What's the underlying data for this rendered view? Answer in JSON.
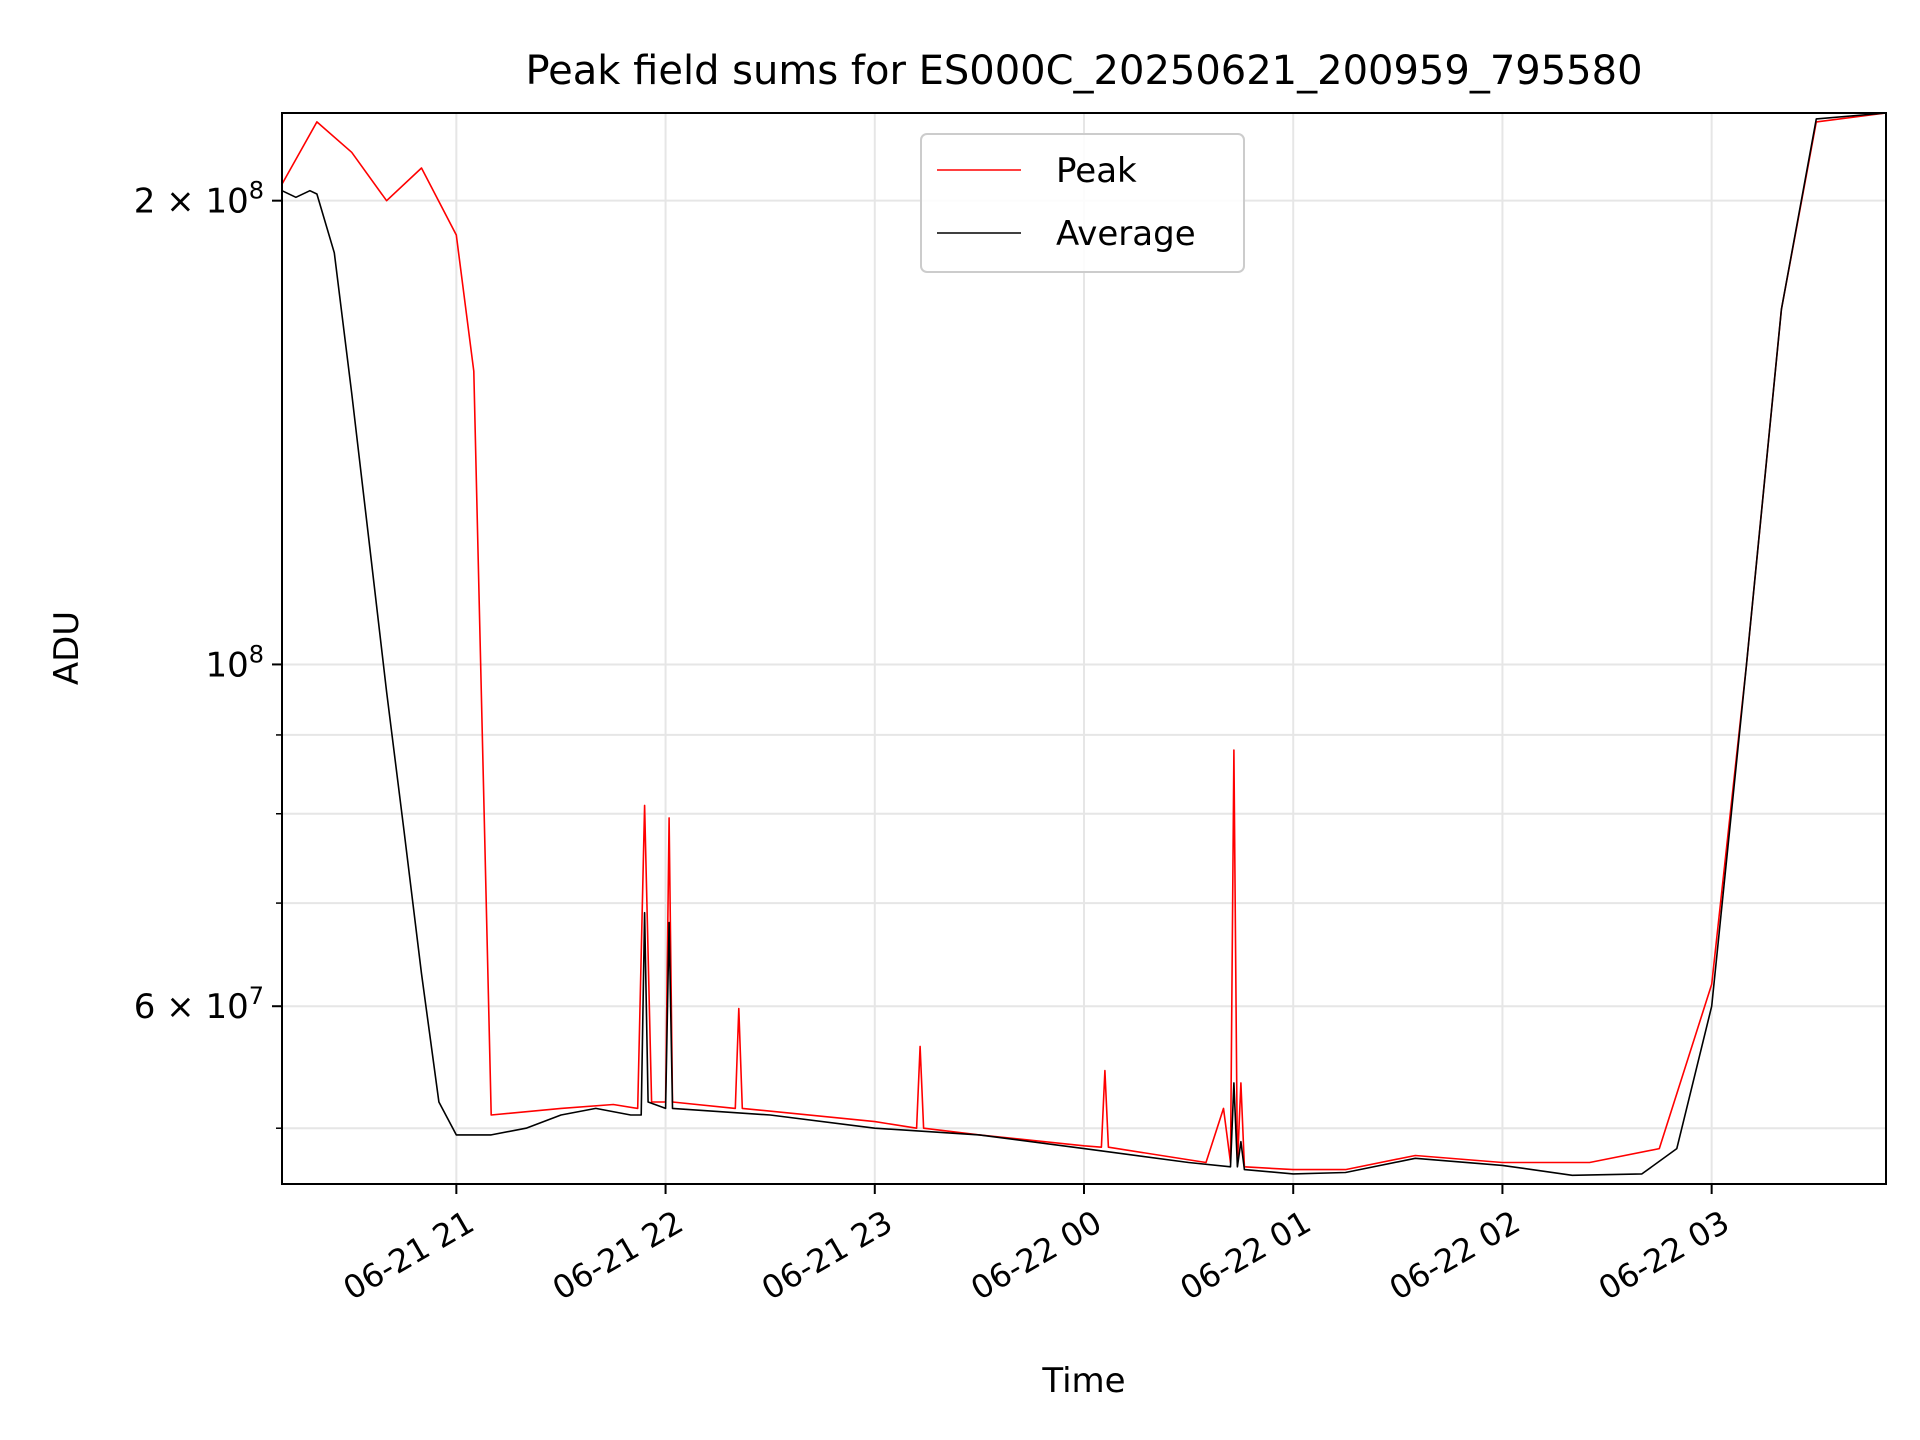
{
  "chart_data": {
    "type": "line",
    "title": "Peak field sums for ES000C_20250621_200959_795580",
    "xlabel": "Time",
    "ylabel": "ADU",
    "y_scale": "log",
    "grid": true,
    "legend_position": "top-center",
    "x_range": [
      "2025-06-21 20:10",
      "2025-06-22 03:50"
    ],
    "ylim": [
      46000000,
      228000000
    ],
    "x_ticks": [
      {
        "t": "2025-06-21 21:00",
        "label": "06-21 21"
      },
      {
        "t": "2025-06-21 22:00",
        "label": "06-21 22"
      },
      {
        "t": "2025-06-21 23:00",
        "label": "06-21 23"
      },
      {
        "t": "2025-06-22 00:00",
        "label": "06-22 00"
      },
      {
        "t": "2025-06-22 01:00",
        "label": "06-22 01"
      },
      {
        "t": "2025-06-22 02:00",
        "label": "06-22 02"
      },
      {
        "t": "2025-06-22 03:00",
        "label": "06-22 03"
      }
    ],
    "y_major_ticks": [
      {
        "value": 200000000,
        "mantissa": "2",
        "exp": "8"
      },
      {
        "value": 100000000,
        "mantissa": "",
        "exp": "8"
      },
      {
        "value": 60000000,
        "mantissa": "6",
        "exp": "7"
      }
    ],
    "y_minor_ticks": [
      50000000,
      70000000,
      80000000,
      90000000
    ],
    "series": [
      {
        "name": "Peak",
        "color": "#ff0000",
        "points": [
          [
            "2025-06-21 20:10",
            205000000
          ],
          [
            "2025-06-21 20:20",
            225000000
          ],
          [
            "2025-06-21 20:30",
            215000000
          ],
          [
            "2025-06-21 20:40",
            200000000
          ],
          [
            "2025-06-21 20:50",
            210000000
          ],
          [
            "2025-06-21 21:00",
            190000000
          ],
          [
            "2025-06-21 21:05",
            155000000
          ],
          [
            "2025-06-21 21:10",
            51000000
          ],
          [
            "2025-06-21 21:30",
            51500000
          ],
          [
            "2025-06-21 21:45",
            51800000
          ],
          [
            "2025-06-21 21:52",
            51500000
          ],
          [
            "2025-06-21 21:54",
            81000000
          ],
          [
            "2025-06-21 21:56",
            52000000
          ],
          [
            "2025-06-21 22:00",
            52000000
          ],
          [
            "2025-06-21 22:01",
            79500000
          ],
          [
            "2025-06-21 22:02",
            52000000
          ],
          [
            "2025-06-21 22:20",
            51500000
          ],
          [
            "2025-06-21 22:21",
            59800000
          ],
          [
            "2025-06-21 22:22",
            51500000
          ],
          [
            "2025-06-21 23:00",
            50500000
          ],
          [
            "2025-06-21 23:12",
            50000000
          ],
          [
            "2025-06-21 23:13",
            56500000
          ],
          [
            "2025-06-21 23:14",
            50000000
          ],
          [
            "2025-06-21 23:30",
            49500000
          ],
          [
            "2025-06-22 00:00",
            48700000
          ],
          [
            "2025-06-22 00:05",
            48600000
          ],
          [
            "2025-06-22 00:06",
            54500000
          ],
          [
            "2025-06-22 00:07",
            48600000
          ],
          [
            "2025-06-22 00:35",
            47500000
          ],
          [
            "2025-06-22 00:40",
            51500000
          ],
          [
            "2025-06-22 00:42",
            47500000
          ],
          [
            "2025-06-22 00:43",
            88000000
          ],
          [
            "2025-06-22 00:44",
            47300000
          ],
          [
            "2025-06-22 00:45",
            53500000
          ],
          [
            "2025-06-22 00:46",
            47200000
          ],
          [
            "2025-06-22 01:00",
            47000000
          ],
          [
            "2025-06-22 01:15",
            47000000
          ],
          [
            "2025-06-22 01:35",
            48000000
          ],
          [
            "2025-06-22 02:00",
            47500000
          ],
          [
            "2025-06-22 02:25",
            47500000
          ],
          [
            "2025-06-22 02:45",
            48500000
          ],
          [
            "2025-06-22 03:00",
            62000000
          ],
          [
            "2025-06-22 03:10",
            100000000
          ],
          [
            "2025-06-22 03:20",
            170000000
          ],
          [
            "2025-06-22 03:30",
            225000000
          ],
          [
            "2025-06-22 03:50",
            228000000
          ]
        ]
      },
      {
        "name": "Average",
        "color": "#000000",
        "points": [
          [
            "2025-06-21 20:10",
            203000000
          ],
          [
            "2025-06-21 20:14",
            201000000
          ],
          [
            "2025-06-21 20:18",
            203000000
          ],
          [
            "2025-06-21 20:20",
            202000000
          ],
          [
            "2025-06-21 20:25",
            185000000
          ],
          [
            "2025-06-21 20:30",
            150000000
          ],
          [
            "2025-06-21 20:35",
            120000000
          ],
          [
            "2025-06-21 20:40",
            96000000
          ],
          [
            "2025-06-21 20:45",
            78000000
          ],
          [
            "2025-06-21 20:50",
            63000000
          ],
          [
            "2025-06-21 20:55",
            52000000
          ],
          [
            "2025-06-21 21:00",
            49500000
          ],
          [
            "2025-06-21 21:05",
            49500000
          ],
          [
            "2025-06-21 21:10",
            49500000
          ],
          [
            "2025-06-21 21:20",
            50000000
          ],
          [
            "2025-06-21 21:30",
            51000000
          ],
          [
            "2025-06-21 21:40",
            51500000
          ],
          [
            "2025-06-21 21:50",
            51000000
          ],
          [
            "2025-06-21 21:53",
            51000000
          ],
          [
            "2025-06-21 21:54",
            69000000
          ],
          [
            "2025-06-21 21:55",
            52000000
          ],
          [
            "2025-06-21 22:00",
            51500000
          ],
          [
            "2025-06-21 22:01",
            68000000
          ],
          [
            "2025-06-21 22:02",
            51500000
          ],
          [
            "2025-06-21 22:30",
            51000000
          ],
          [
            "2025-06-21 23:00",
            50000000
          ],
          [
            "2025-06-21 23:30",
            49500000
          ],
          [
            "2025-06-22 00:00",
            48500000
          ],
          [
            "2025-06-22 00:30",
            47500000
          ],
          [
            "2025-06-22 00:42",
            47200000
          ],
          [
            "2025-06-22 00:43",
            53500000
          ],
          [
            "2025-06-22 00:44",
            47200000
          ],
          [
            "2025-06-22 00:45",
            49000000
          ],
          [
            "2025-06-22 00:46",
            47000000
          ],
          [
            "2025-06-22 01:00",
            46700000
          ],
          [
            "2025-06-22 01:15",
            46800000
          ],
          [
            "2025-06-22 01:35",
            47800000
          ],
          [
            "2025-06-22 02:00",
            47300000
          ],
          [
            "2025-06-22 02:20",
            46600000
          ],
          [
            "2025-06-22 02:40",
            46700000
          ],
          [
            "2025-06-22 02:50",
            48500000
          ],
          [
            "2025-06-22 03:00",
            60000000
          ],
          [
            "2025-06-22 03:10",
            100000000
          ],
          [
            "2025-06-22 03:20",
            170000000
          ],
          [
            "2025-06-22 03:30",
            226000000
          ],
          [
            "2025-06-22 03:50",
            228000000
          ]
        ]
      }
    ]
  }
}
